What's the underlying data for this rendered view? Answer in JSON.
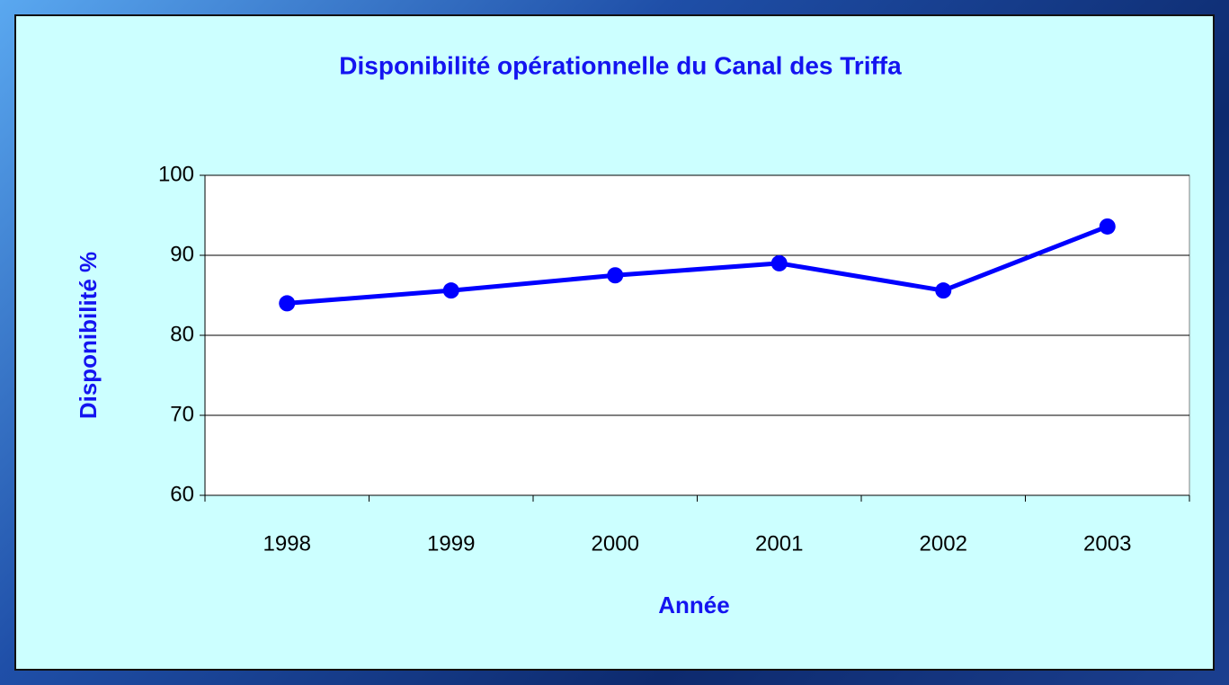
{
  "chart_data": {
    "type": "line",
    "title": "Disponibilité opérationnelle du Canal des Triffa",
    "x_label": "Année",
    "y_label": "Disponibilité %",
    "categories": [
      "1998",
      "1999",
      "2000",
      "2001",
      "2002",
      "2003"
    ],
    "series": [
      {
        "name": "Disponibilité",
        "color": "#0000ff",
        "values": [
          84.0,
          85.6,
          87.5,
          89.0,
          85.6,
          93.6
        ]
      }
    ],
    "ylim": [
      60,
      100
    ],
    "yticks": [
      60,
      70,
      80,
      90,
      100
    ],
    "grid": true,
    "legend": false
  }
}
